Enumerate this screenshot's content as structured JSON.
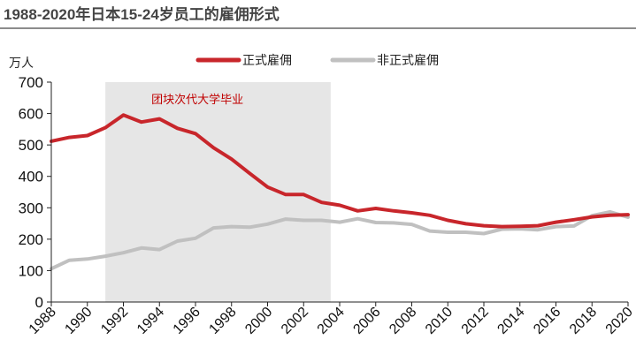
{
  "title": "1988-2020年日本15-24岁员工的雇佣形式",
  "chart_data": {
    "type": "line",
    "title": "1988-2020年日本15-24岁员工的雇佣形式",
    "ylabel": "万人",
    "ylim": [
      0,
      700
    ],
    "yticks": [
      0,
      100,
      200,
      300,
      400,
      500,
      600,
      700
    ],
    "xlim": [
      1988,
      2020
    ],
    "xticks": [
      1988,
      1990,
      1992,
      1994,
      1996,
      1998,
      2000,
      2002,
      2004,
      2006,
      2008,
      2010,
      2012,
      2014,
      2016,
      2018,
      2020
    ],
    "legend_position": "top",
    "grid": false,
    "annotation": {
      "text": "团块次代大学毕业",
      "x_range": [
        1991,
        2003.5
      ],
      "color": "#c00000"
    },
    "x": [
      1988,
      1989,
      1990,
      1991,
      1992,
      1993,
      1994,
      1995,
      1996,
      1997,
      1998,
      1999,
      2000,
      2001,
      2002,
      2003,
      2004,
      2005,
      2006,
      2007,
      2008,
      2009,
      2010,
      2011,
      2012,
      2013,
      2014,
      2015,
      2016,
      2017,
      2018,
      2019,
      2020
    ],
    "series": [
      {
        "name": "正式雇佣",
        "color": "#c8262b",
        "values": [
          512,
          524,
          530,
          555,
          595,
          573,
          583,
          553,
          536,
          491,
          455,
          410,
          366,
          342,
          342,
          317,
          308,
          290,
          298,
          290,
          284,
          276,
          260,
          249,
          243,
          240,
          241,
          243,
          254,
          262,
          271,
          276,
          278
        ]
      },
      {
        "name": "非正式雇佣",
        "color": "#c0c0c0",
        "values": [
          106,
          133,
          137,
          146,
          157,
          172,
          167,
          194,
          203,
          236,
          240,
          238,
          248,
          264,
          260,
          260,
          254,
          265,
          253,
          252,
          247,
          226,
          222,
          222,
          218,
          232,
          233,
          230,
          240,
          242,
          275,
          287,
          270
        ]
      }
    ]
  }
}
